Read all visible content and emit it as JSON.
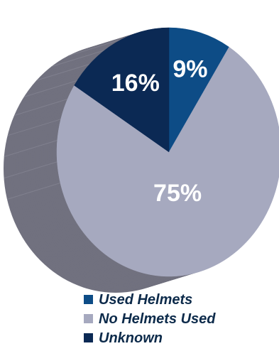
{
  "chart_data": {
    "type": "pie",
    "title": "",
    "categories": [
      "Used Helmets",
      "No Helmets Used",
      "Unknown"
    ],
    "values": [
      9,
      75,
      16
    ],
    "data_labels": [
      "9%",
      "75%",
      "16%"
    ],
    "colors": {
      "Used Helmets": "#0d4c86",
      "No Helmets Used": "#a6a9bf",
      "Unknown": "#0b2954",
      "side_wall": "#71717f",
      "label_text": "#ffffff"
    },
    "legend_placement": "bottom",
    "style": "3d-tilted"
  },
  "legend": {
    "items": [
      {
        "label": "Used Helmets",
        "color": "#0d4c86"
      },
      {
        "label": "No Helmets Used",
        "color": "#a6a9bf"
      },
      {
        "label": "Unknown",
        "color": "#0b2954"
      }
    ]
  }
}
